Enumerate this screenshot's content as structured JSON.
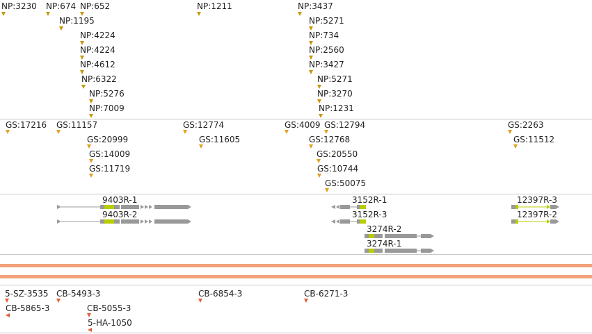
{
  "tracks": {
    "np": {
      "items": [
        {
          "label": "NP:3230"
        },
        {
          "label": "NP:674"
        },
        {
          "label": "NP:652"
        },
        {
          "label": "NP:1211"
        },
        {
          "label": "NP:3437"
        },
        {
          "label": "NP:1195"
        },
        {
          "label": "NP:5271"
        },
        {
          "label": "NP:4224"
        },
        {
          "label": "NP:734"
        },
        {
          "label": "NP:4224"
        },
        {
          "label": "NP:2560"
        },
        {
          "label": "NP:4612"
        },
        {
          "label": "NP:3427"
        },
        {
          "label": "NP:6322"
        },
        {
          "label": "NP:5271"
        },
        {
          "label": "NP:5276"
        },
        {
          "label": "NP:3270"
        },
        {
          "label": "NP:7009"
        },
        {
          "label": "NP:1231"
        }
      ]
    },
    "gs": {
      "items": [
        {
          "label": "GS:17216"
        },
        {
          "label": "GS:11157"
        },
        {
          "label": "GS:12774"
        },
        {
          "label": "GS:4009"
        },
        {
          "label": "GS:12794"
        },
        {
          "label": "GS:2263"
        },
        {
          "label": "GS:20999"
        },
        {
          "label": "GS:11605"
        },
        {
          "label": "GS:12768"
        },
        {
          "label": "GS:11512"
        },
        {
          "label": "GS:14009"
        },
        {
          "label": "GS:20550"
        },
        {
          "label": "GS:11719"
        },
        {
          "label": "GS:10744"
        },
        {
          "label": "GS:50075"
        }
      ]
    },
    "genes": {
      "items": [
        {
          "label": "9403R-1"
        },
        {
          "label": "9403R-2"
        },
        {
          "label": "3152R-1"
        },
        {
          "label": "3152R-3"
        },
        {
          "label": "3274R-2"
        },
        {
          "label": "3274R-1"
        },
        {
          "label": "12397R-3"
        },
        {
          "label": "12397R-2"
        }
      ]
    },
    "cb": {
      "items": [
        {
          "label": "5-SZ-3535"
        },
        {
          "label": "CB-5493-3"
        },
        {
          "label": "CB-6854-3"
        },
        {
          "label": "CB-6271-3"
        },
        {
          "label": "CB-5865-3"
        },
        {
          "label": "CB-5055-3"
        },
        {
          "label": "5-HA-1050"
        }
      ]
    }
  },
  "colors": {
    "np_marker": "#c8960a",
    "gs_marker": "#e0a020",
    "cb_marker": "#e0603a",
    "gene_body": "#999999",
    "gene_highlight": "#b8cc00",
    "band": "#f2a27a"
  }
}
